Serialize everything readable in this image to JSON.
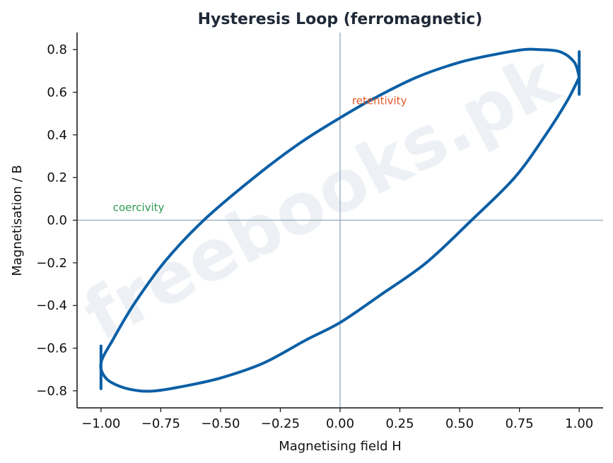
{
  "chart_data": {
    "type": "line",
    "title": "Hysteresis Loop (ferromagnetic)",
    "xlabel": "Magnetising field H",
    "ylabel": "Magnetisation / B",
    "xlim": [
      -1.1,
      1.1
    ],
    "ylim": [
      -0.88,
      0.88
    ],
    "x_ticks": [
      -1.0,
      -0.75,
      -0.5,
      -0.25,
      0.0,
      0.25,
      0.5,
      0.75,
      1.0
    ],
    "x_tick_labels": [
      "−1.00",
      "−0.75",
      "−0.50",
      "−0.25",
      "0.00",
      "0.25",
      "0.50",
      "0.75",
      "1.00"
    ],
    "y_ticks": [
      -0.8,
      -0.6,
      -0.4,
      -0.2,
      0.0,
      0.2,
      0.4,
      0.6,
      0.8
    ],
    "y_tick_labels": [
      "−0.8",
      "−0.6",
      "−0.4",
      "−0.2",
      "0.0",
      "0.2",
      "0.4",
      "0.6",
      "0.8"
    ],
    "series": [
      {
        "color": "#0b5fa5",
        "x": [
          1.0,
          0.98,
          0.92,
          0.83,
          0.77,
          0.66,
          0.5,
          0.32,
          0.14,
          0.0,
          -0.17,
          -0.36,
          -0.57,
          -0.73,
          -0.86,
          -0.95,
          -1.0,
          -0.98,
          -0.92,
          -0.84,
          -0.77,
          -0.66,
          -0.5,
          -0.32,
          -0.14,
          0.0,
          0.17,
          0.36,
          0.55,
          0.73,
          0.86,
          0.95,
          1.0
        ],
        "y": [
          0.67,
          0.74,
          0.79,
          0.8,
          0.8,
          0.78,
          0.74,
          0.67,
          0.57,
          0.48,
          0.36,
          0.2,
          0.0,
          -0.19,
          -0.39,
          -0.56,
          -0.67,
          -0.74,
          -0.78,
          -0.8,
          -0.8,
          -0.78,
          -0.74,
          -0.67,
          -0.56,
          -0.48,
          -0.35,
          -0.2,
          0.0,
          0.2,
          0.4,
          0.56,
          0.67
        ]
      }
    ],
    "tips": [
      {
        "x": 1.0,
        "y_top": 0.79,
        "y_bot": 0.59
      },
      {
        "x": -1.0,
        "y_top": -0.59,
        "y_bot": -0.79
      }
    ],
    "reference_lines": {
      "x": 0.0,
      "y": 0.0,
      "color": "#94a8b8"
    },
    "annotations": [
      {
        "text": "retentivity",
        "x": 0.05,
        "y": 0.56,
        "color": "#e05a2b"
      },
      {
        "text": "coercivity",
        "x": -0.95,
        "y": 0.06,
        "color": "#2e9a4e"
      }
    ],
    "grid": false
  },
  "watermark": "freebooks.pk"
}
